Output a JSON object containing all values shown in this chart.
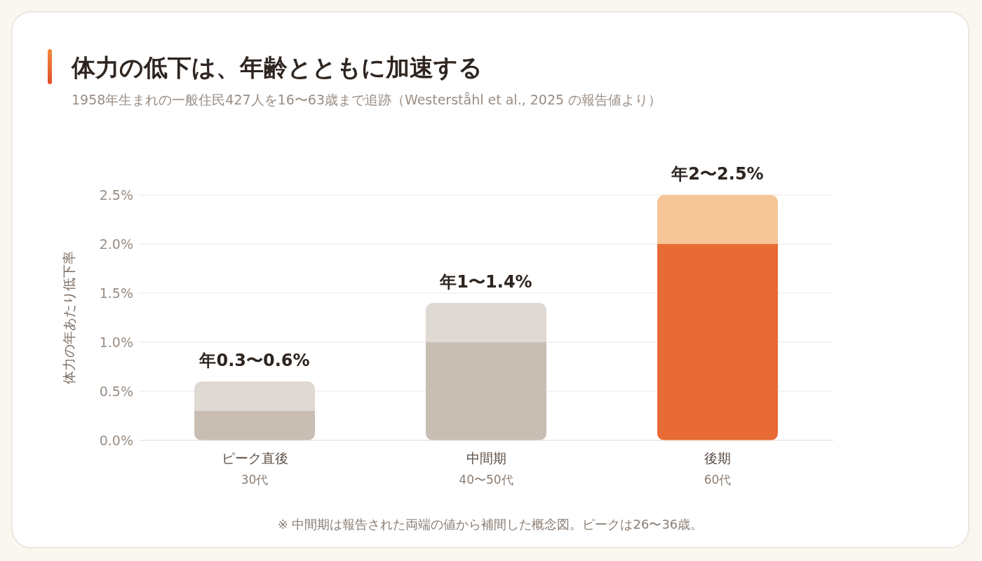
{
  "chart_data": {
    "type": "bar",
    "title": "体力の低下は、年齢とともに加速する",
    "subtitle": "1958年生まれの一般住民427人を16〜63歳まで追跡（Westerståhl et al., 2025 の報告値より）",
    "ylabel": "体力の年あたり低下率",
    "categories": [
      "ピーク直後\n30代",
      "中間期\n40〜50代",
      "後期\n60代"
    ],
    "series": [
      {
        "colors": [
          "#c9beb4",
          "#c9beb4",
          "#e86a35"
        ],
        "values": [
          0.3,
          1.0,
          2.0
        ]
      },
      {
        "colors": [
          "#dfd9d3",
          "#dfd9d3",
          "#f6c597"
        ],
        "values": [
          0.3,
          0.4,
          0.5
        ]
      }
    ],
    "stacked": true,
    "ylim": [
      0,
      2.5
    ],
    "yticks": [
      {
        "value": 0,
        "label": "0.0%"
      },
      {
        "value": 0.5,
        "label": "0.5%"
      },
      {
        "value": 1,
        "label": "1.0%"
      },
      {
        "value": 1.5,
        "label": "1.5%"
      },
      {
        "value": 2,
        "label": "2.0%"
      },
      {
        "value": 2.5,
        "label": "2.5%"
      }
    ],
    "grid": "y",
    "legend": false,
    "annotations": [
      {
        "text": "年0.3〜0.6%",
        "x": "ピーク直後\n30代",
        "y": 0.6
      },
      {
        "text": "年1〜1.4%",
        "x": "中間期\n40〜50代",
        "y": 1.4
      },
      {
        "text": "年2〜2.5%",
        "x": "後期\n60代",
        "y": 2.5
      },
      "※ 中間期は報告された両端の値から補間した概念図。ピークは26〜36歳。"
    ]
  }
}
